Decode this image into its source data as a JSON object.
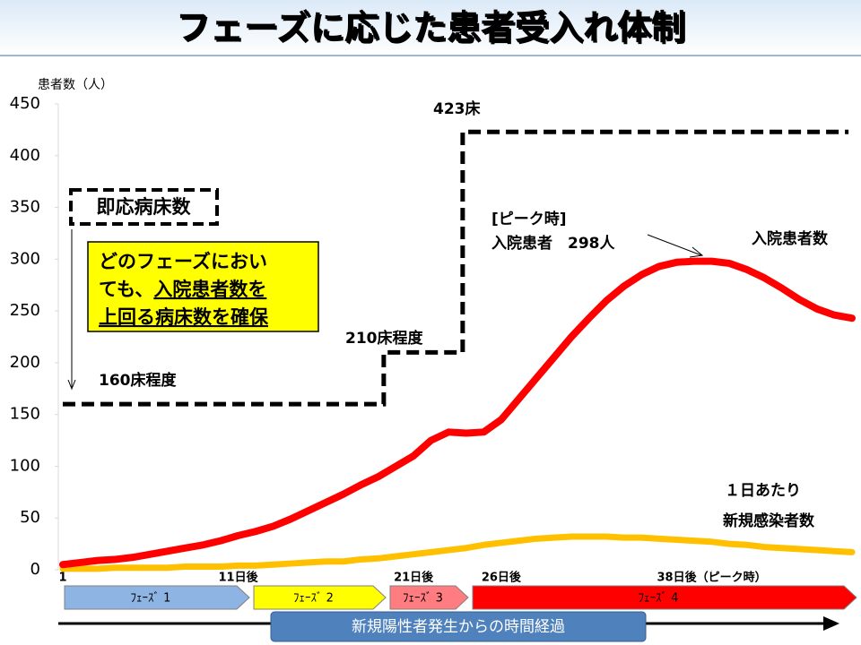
{
  "chart_data": {
    "type": "line",
    "title": "フェーズに応じた患者受入れ体制",
    "y_label": "患者数（人）",
    "ylim": [
      0,
      450
    ],
    "yticks": [
      0,
      50,
      100,
      150,
      200,
      250,
      300,
      350,
      400,
      450
    ],
    "xlim": [
      1,
      46
    ],
    "xticks": [
      {
        "value": 1,
        "label": "1"
      },
      {
        "value": 11,
        "label": "11日後"
      },
      {
        "value": 21,
        "label": "21日後"
      },
      {
        "value": 26,
        "label": "26日後"
      },
      {
        "value": 38,
        "label": "38日後（ピーク時）"
      }
    ],
    "x": [
      1,
      2,
      3,
      4,
      5,
      6,
      7,
      8,
      9,
      10,
      11,
      12,
      13,
      14,
      15,
      16,
      17,
      18,
      19,
      20,
      21,
      22,
      23,
      24,
      25,
      26,
      27,
      28,
      29,
      30,
      31,
      32,
      33,
      34,
      35,
      36,
      37,
      38,
      39,
      40,
      41,
      42,
      43,
      44,
      45,
      46
    ],
    "series": [
      {
        "name": [
          "入院患者数"
        ],
        "color": "#ff0000",
        "values": [
          5,
          7,
          9,
          10,
          12,
          15,
          18,
          21,
          24,
          28,
          33,
          37,
          42,
          49,
          57,
          65,
          73,
          82,
          90,
          100,
          110,
          125,
          133,
          132,
          133,
          145,
          165,
          185,
          205,
          225,
          243,
          260,
          274,
          285,
          293,
          297,
          298,
          298,
          296,
          290,
          282,
          272,
          261,
          252,
          246,
          243
        ]
      },
      {
        "name": [
          "１日あたり",
          "新規感染者数"
        ],
        "color": "#ffc000",
        "values": [
          1,
          1,
          1,
          2,
          2,
          2,
          2,
          3,
          3,
          3,
          4,
          4,
          5,
          6,
          7,
          8,
          8,
          10,
          11,
          13,
          15,
          17,
          19,
          21,
          24,
          26,
          28,
          30,
          31,
          32,
          32,
          32,
          31,
          31,
          30,
          29,
          28,
          27,
          25,
          24,
          22,
          21,
          20,
          19,
          18,
          17
        ]
      }
    ],
    "beds": {
      "name": "即応病床数",
      "color": "#000000",
      "x": [
        1,
        19.3,
        19.3,
        23.8,
        23.8,
        45.8
      ],
      "values": [
        160,
        160,
        210,
        210,
        423,
        423
      ]
    },
    "annotations": [
      "160床程度",
      "210床程度",
      "423床",
      "[ピーク時]",
      "入院患者　298人"
    ],
    "note": [
      [
        {
          "text": "どのフェーズにおい",
          "underline": false
        }
      ],
      [
        {
          "text": "ても、",
          "underline": false
        },
        {
          "text": "入院患者数を",
          "underline": true
        }
      ],
      [
        {
          "text": "上回る病床数を確保",
          "underline": true
        }
      ]
    ],
    "phases": [
      {
        "label": "ﾌｪｰｽﾞ 1",
        "color": "#8eb4e3"
      },
      {
        "label": "ﾌｪｰｽﾞ 2",
        "color": "#ffff00"
      },
      {
        "label": "ﾌｪｰｽﾞ 3",
        "color": "#ff7c80"
      },
      {
        "label": "ﾌｪｰｽﾞ 4",
        "color": "#ff0000"
      }
    ],
    "time_label": "新規陽性者発生からの時間経過"
  }
}
